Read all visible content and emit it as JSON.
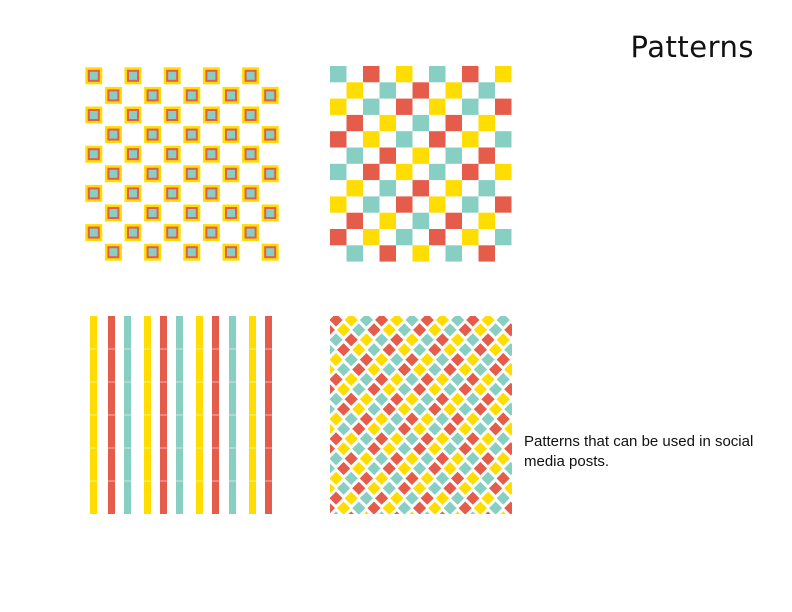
{
  "title": "Patterns",
  "caption": "Patterns that can be used in social media posts.",
  "colors": {
    "yellow": "#FFDD00",
    "red": "#E65C4A",
    "teal": "#88CFC3",
    "orange": "#F7A63D",
    "background": "#FFFFFF"
  },
  "patterns": [
    {
      "id": "squares",
      "name": "framed-square-checkerboard"
    },
    {
      "id": "checker",
      "name": "tricolor-checkerboard"
    },
    {
      "id": "stripes",
      "name": "vertical-stripes"
    },
    {
      "id": "diamonds",
      "name": "diamond-lattice"
    }
  ]
}
